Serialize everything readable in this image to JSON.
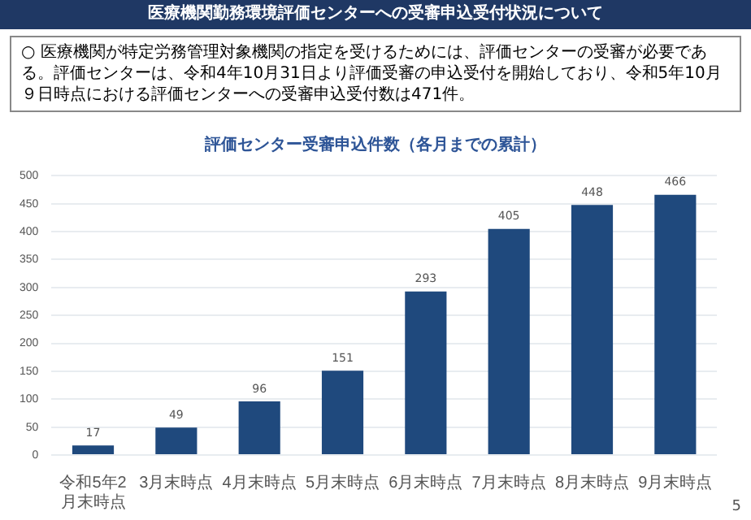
{
  "chart_data": {
    "type": "bar",
    "title": "評価センター受審申込件数（各月までの累計）",
    "annotations": [
      "医療機関勤務環境評価センターへの受審申込受付状況について",
      "○ 医療機関が特定労務管理対象機関の指定を受けるためには、評価センターの受審が必要である。評価センターは、令和4年10月31日より評価受審の申込受付を開始しており、令和5年10月９日時点における評価センターへの受審申込受付数は471件。",
      "5"
    ],
    "categories": [
      "令和5年2月末時点",
      "3月末時点",
      "4月末時点",
      "5月末時点",
      "6月末時点",
      "7月末時点",
      "8月末時点",
      "9月末時点"
    ],
    "values": [
      17,
      49,
      96,
      151,
      293,
      405,
      448,
      466
    ],
    "color": "#1f497d",
    "ylim": [
      0,
      500
    ],
    "yticks": [
      0,
      50,
      100,
      150,
      200,
      250,
      300,
      350,
      400,
      450,
      500
    ],
    "grid": "y",
    "data_labels": true
  }
}
